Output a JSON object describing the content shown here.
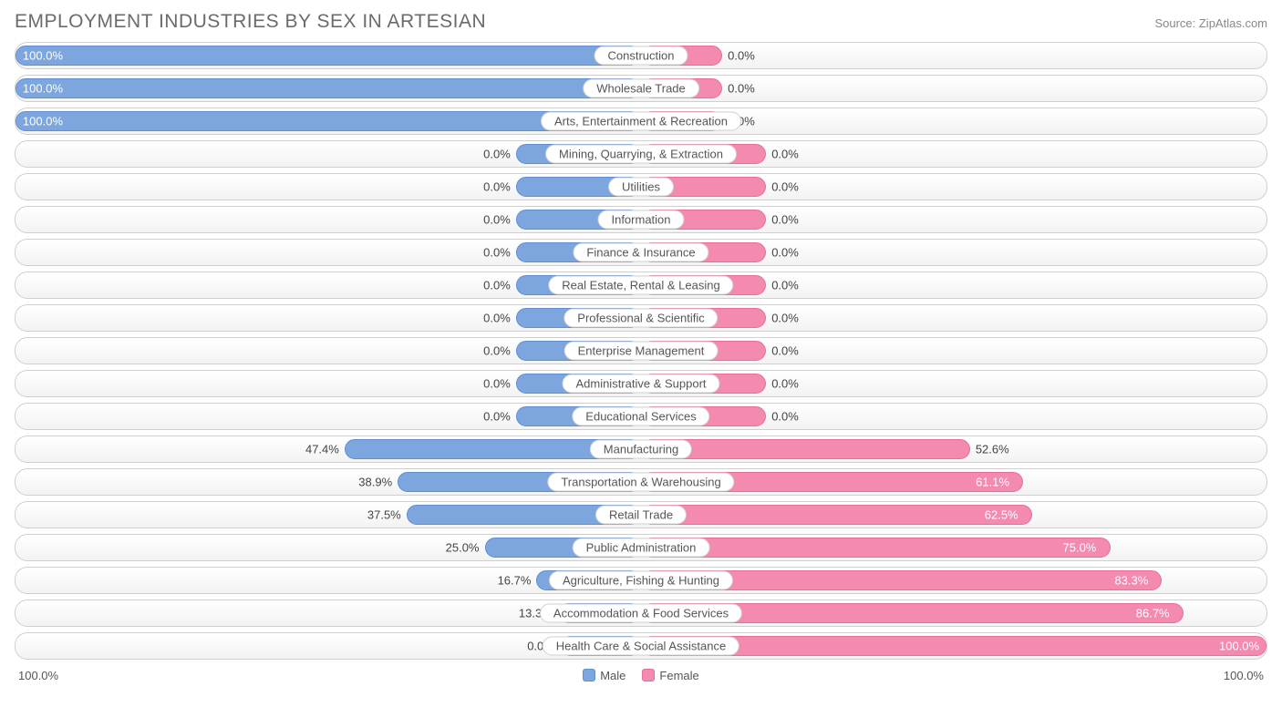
{
  "title": "EMPLOYMENT INDUSTRIES BY SEX IN ARTESIAN",
  "source": "Source: ZipAtlas.com",
  "colors": {
    "male_fill": "#7ca6dd",
    "male_border": "#5f8fcf",
    "female_fill": "#f48ab0",
    "female_border": "#e66f9c",
    "row_border": "#cfcfcf",
    "text": "#555555",
    "title_color": "#6b6b6b",
    "grad_top": "#ffffff",
    "grad_bottom": "#f3f3f3"
  },
  "chart": {
    "type": "butterfly-bar",
    "axis_max": 100.0,
    "min_bar_pct": 13.0,
    "base_pct_no_data": 20.0,
    "axis_left": "100.0%",
    "axis_right": "100.0%",
    "legend_male": "Male",
    "legend_female": "Female",
    "rows": [
      {
        "label": "Construction",
        "male": 100.0,
        "female": 0.0,
        "male_label": "100.0%",
        "female_label": "0.0%"
      },
      {
        "label": "Wholesale Trade",
        "male": 100.0,
        "female": 0.0,
        "male_label": "100.0%",
        "female_label": "0.0%"
      },
      {
        "label": "Arts, Entertainment & Recreation",
        "male": 100.0,
        "female": 0.0,
        "male_label": "100.0%",
        "female_label": "0.0%"
      },
      {
        "label": "Mining, Quarrying, & Extraction",
        "male": 0.0,
        "female": 0.0,
        "male_label": "0.0%",
        "female_label": "0.0%"
      },
      {
        "label": "Utilities",
        "male": 0.0,
        "female": 0.0,
        "male_label": "0.0%",
        "female_label": "0.0%"
      },
      {
        "label": "Information",
        "male": 0.0,
        "female": 0.0,
        "male_label": "0.0%",
        "female_label": "0.0%"
      },
      {
        "label": "Finance & Insurance",
        "male": 0.0,
        "female": 0.0,
        "male_label": "0.0%",
        "female_label": "0.0%"
      },
      {
        "label": "Real Estate, Rental & Leasing",
        "male": 0.0,
        "female": 0.0,
        "male_label": "0.0%",
        "female_label": "0.0%"
      },
      {
        "label": "Professional & Scientific",
        "male": 0.0,
        "female": 0.0,
        "male_label": "0.0%",
        "female_label": "0.0%"
      },
      {
        "label": "Enterprise Management",
        "male": 0.0,
        "female": 0.0,
        "male_label": "0.0%",
        "female_label": "0.0%"
      },
      {
        "label": "Administrative & Support",
        "male": 0.0,
        "female": 0.0,
        "male_label": "0.0%",
        "female_label": "0.0%"
      },
      {
        "label": "Educational Services",
        "male": 0.0,
        "female": 0.0,
        "male_label": "0.0%",
        "female_label": "0.0%"
      },
      {
        "label": "Manufacturing",
        "male": 47.4,
        "female": 52.6,
        "male_label": "47.4%",
        "female_label": "52.6%"
      },
      {
        "label": "Transportation & Warehousing",
        "male": 38.9,
        "female": 61.1,
        "male_label": "38.9%",
        "female_label": "61.1%"
      },
      {
        "label": "Retail Trade",
        "male": 37.5,
        "female": 62.5,
        "male_label": "37.5%",
        "female_label": "62.5%"
      },
      {
        "label": "Public Administration",
        "male": 25.0,
        "female": 75.0,
        "male_label": "25.0%",
        "female_label": "75.0%"
      },
      {
        "label": "Agriculture, Fishing & Hunting",
        "male": 16.7,
        "female": 83.3,
        "male_label": "16.7%",
        "female_label": "83.3%"
      },
      {
        "label": "Accommodation & Food Services",
        "male": 13.3,
        "female": 86.7,
        "male_label": "13.3%",
        "female_label": "86.7%"
      },
      {
        "label": "Health Care & Social Assistance",
        "male": 0.0,
        "female": 100.0,
        "male_label": "0.0%",
        "female_label": "100.0%"
      }
    ]
  }
}
